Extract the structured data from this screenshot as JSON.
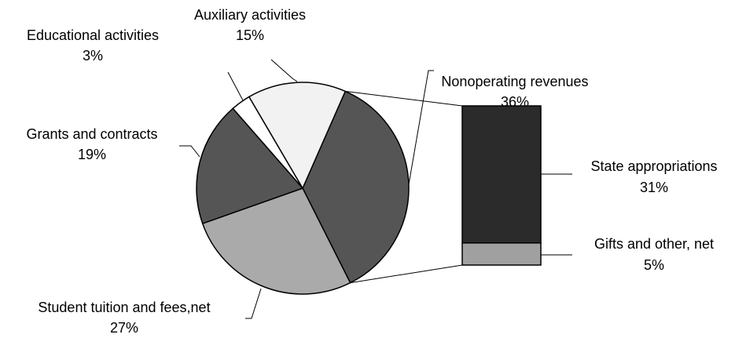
{
  "chart_data": {
    "type": "pie",
    "categories": [
      "Nonoperating revenues",
      "Student tuition and fees,net",
      "Grants and contracts",
      "Educational activities",
      "Auxiliary activities"
    ],
    "values": [
      36,
      27,
      19,
      3,
      15
    ],
    "value_labels": [
      "36%",
      "27%",
      "19%",
      "3%",
      "15%"
    ],
    "colors": [
      "#555555",
      "#aaaaaa",
      "#555555",
      "#ffffff",
      "#f2f2f2"
    ],
    "bar": {
      "categories": [
        "State appropriations",
        "Gifts and other, net"
      ],
      "values": [
        31,
        5
      ],
      "value_labels": [
        "31%",
        "5%"
      ],
      "colors": [
        "#2b2b2b",
        "#a0a0a0"
      ]
    }
  }
}
